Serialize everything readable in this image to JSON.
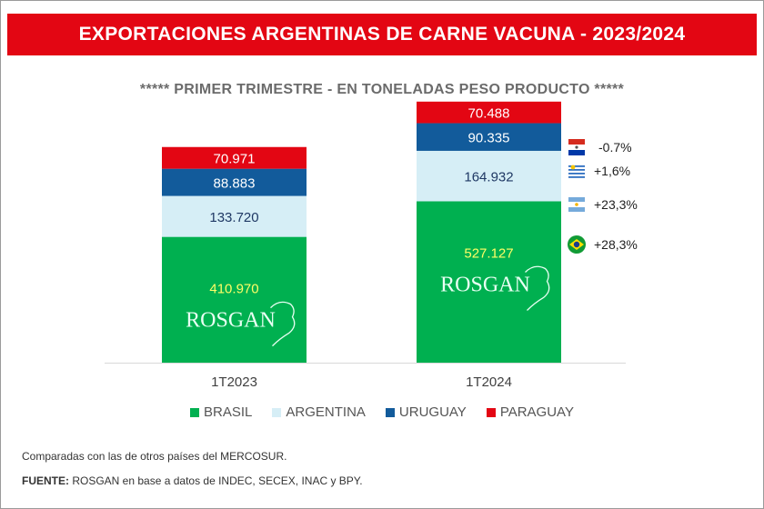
{
  "chart_data": {
    "type": "bar",
    "stacked": true,
    "title": "EXPORTACIONES ARGENTINAS DE CARNE VACUNA - 2023/2024",
    "subtitle": "***** PRIMER TRIMESTRE - EN TONELADAS PESO PRODUCTO *****",
    "categories": [
      "1T2023",
      "1T2024"
    ],
    "series": [
      {
        "name": "BRASIL",
        "color": "#00b050",
        "label_color": "#ffff66",
        "values": [
          410970,
          527127
        ],
        "labels": [
          "410.970",
          "527.127"
        ]
      },
      {
        "name": "ARGENTINA",
        "color": "#d6eef6",
        "label_color": "#1f3864",
        "values": [
          133720,
          164932
        ],
        "labels": [
          "133.720",
          "164.932"
        ]
      },
      {
        "name": "URUGUAY",
        "color": "#125b9b",
        "label_color": "#ffffff",
        "values": [
          88883,
          90335
        ],
        "labels": [
          "88.883",
          "90.335"
        ]
      },
      {
        "name": "PARAGUAY",
        "color": "#e30613",
        "label_color": "#ffffff",
        "values": [
          70971,
          70488
        ],
        "labels": [
          "70.971",
          "70.488"
        ]
      }
    ],
    "variations": [
      {
        "country": "PARAGUAY",
        "flag": "paraguay-flag-icon",
        "text": "-0.7%"
      },
      {
        "country": "URUGUAY",
        "flag": "uruguay-flag-icon",
        "text": "+1,6%"
      },
      {
        "country": "ARGENTINA",
        "flag": "argentina-flag-icon",
        "text": "+23,3%"
      },
      {
        "country": "BRASIL",
        "flag": "brazil-flag-icon",
        "text": "+28,3%"
      }
    ],
    "legend_position": "bottom",
    "watermark": "ROSGAN"
  },
  "footer": {
    "note": "Comparadas con las de otros países del MERCOSUR.",
    "source_label": "FUENTE:",
    "source_text": " ROSGAN en base a datos de INDEC, SECEX, INAC y BPY."
  }
}
